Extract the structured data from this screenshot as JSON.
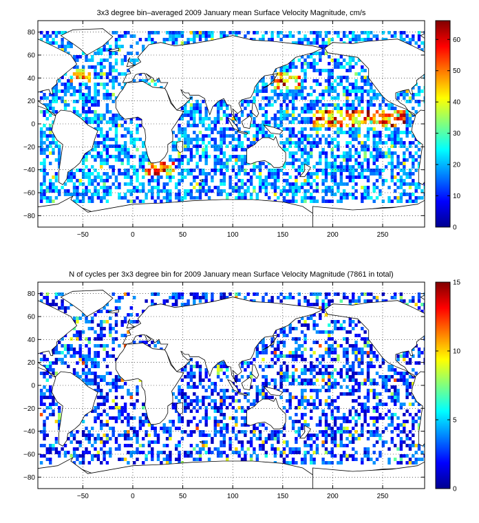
{
  "chart_data": [
    {
      "type": "heatmap",
      "title": "3x3 degree bin–averaged 2009 January mean Surface Velocity Magnitude, cm/s",
      "xlabel": "",
      "ylabel": "",
      "xlim": [
        -95,
        292
      ],
      "ylim": [
        -90,
        90
      ],
      "x_ticks": [
        -50,
        0,
        50,
        100,
        150,
        200,
        250
      ],
      "y_ticks": [
        80,
        60,
        40,
        20,
        0,
        -20,
        -40,
        -60,
        -80
      ],
      "grid": "dotted",
      "bin_size_deg": 3,
      "colorbar": {
        "min": 0,
        "max": 66,
        "ticks": [
          0,
          10,
          20,
          30,
          40,
          50,
          60
        ],
        "colormap": "jet"
      },
      "overlay": "coastlines",
      "description_of_values": "sparse colored 3x3 degree bins over ocean; mostly 10-25, high values (50-66) along equatorial Pacific 0 to 10N, Kuroshio near 35N 140-160E, Gulf Stream near 40N -60 to -40, Agulhas near -40S 20E"
    },
    {
      "type": "heatmap",
      "title": "N of cycles per 3x3 degree bin for 2009 January mean Surface Velocity Magnitude (7861 in total)",
      "xlabel": "",
      "ylabel": "",
      "xlim": [
        -95,
        292
      ],
      "ylim": [
        -90,
        90
      ],
      "x_ticks": [
        -50,
        0,
        50,
        100,
        150,
        200,
        250
      ],
      "y_ticks": [
        80,
        60,
        40,
        20,
        0,
        -20,
        -40,
        -60,
        -80
      ],
      "grid": "dotted",
      "bin_size_deg": 3,
      "colorbar": {
        "min": 0,
        "max": 15,
        "ticks": [
          0,
          5,
          10,
          15
        ],
        "colormap": "jet"
      },
      "overlay": "coastlines",
      "description_of_values": "sparse bins over ocean, mostly 1-4 cycles (dark blue), occasional 6-12"
    }
  ]
}
